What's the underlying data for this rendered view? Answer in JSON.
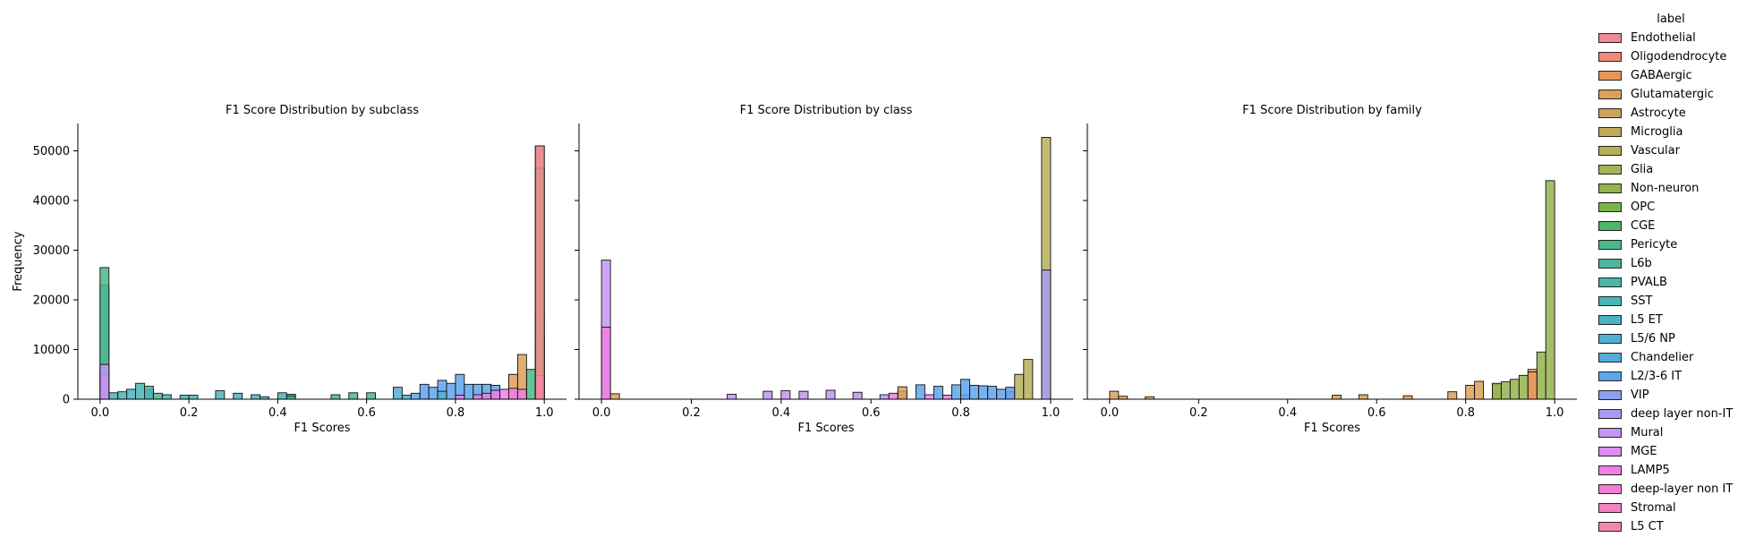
{
  "legend": {
    "title": "label",
    "items": [
      {
        "label": "Endothelial",
        "color": "#f08a95"
      },
      {
        "label": "Oligodendrocyte",
        "color": "#f0897a"
      },
      {
        "label": "GABAergic",
        "color": "#e8955a"
      },
      {
        "label": "Glutamatergic",
        "color": "#d9a159"
      },
      {
        "label": "Astrocyte",
        "color": "#cda35a"
      },
      {
        "label": "Microglia",
        "color": "#c4aa58"
      },
      {
        "label": "Vascular",
        "color": "#b5b059"
      },
      {
        "label": "Glia",
        "color": "#a5b355"
      },
      {
        "label": "Non-neuron",
        "color": "#93b34e"
      },
      {
        "label": "OPC",
        "color": "#77b54a"
      },
      {
        "label": "CGE",
        "color": "#4fb567"
      },
      {
        "label": "Pericyte",
        "color": "#4bb788"
      },
      {
        "label": "L6b",
        "color": "#4cb59c"
      },
      {
        "label": "PVALB",
        "color": "#4bb5a8"
      },
      {
        "label": "SST",
        "color": "#4bb4b4"
      },
      {
        "label": "L5 ET",
        "color": "#4db2c0"
      },
      {
        "label": "L5/6 NP",
        "color": "#4fb0cd"
      },
      {
        "label": "Chandelier",
        "color": "#52acdb"
      },
      {
        "label": "L2/3-6 IT",
        "color": "#5ea5ec"
      },
      {
        "label": "VIP",
        "color": "#8aa2ee"
      },
      {
        "label": "deep layer non-IT",
        "color": "#a89df0"
      },
      {
        "label": "Mural",
        "color": "#c097f1"
      },
      {
        "label": "MGE",
        "color": "#da8fee"
      },
      {
        "label": "LAMP5",
        "color": "#ed7fe3"
      },
      {
        "label": "deep-layer non IT",
        "color": "#f27fd2"
      },
      {
        "label": "Stromal",
        "color": "#f284be"
      },
      {
        "label": "L5 CT",
        "color": "#f287a6"
      }
    ]
  },
  "chart_data": [
    {
      "type": "bar",
      "title": "F1 Score Distribution by subclass",
      "xlabel": "F1 Scores",
      "ylabel": "Frequency",
      "xlim": [
        -0.05,
        1.05
      ],
      "ylim": [
        0,
        55500
      ],
      "xticks": [
        "0.0",
        "0.2",
        "0.4",
        "0.6",
        "0.8",
        "1.0"
      ],
      "yticks": [
        "0",
        "10000",
        "20000",
        "30000",
        "40000",
        "50000"
      ],
      "bin_width": 0.02,
      "series": [
        {
          "name": "L5 ET",
          "color": "#4db2c0",
          "values": [
            [
              0.0,
              23000
            ],
            [
              0.02,
              1300
            ],
            [
              0.06,
              2000
            ],
            [
              0.1,
              2000
            ],
            [
              0.26,
              1700
            ],
            [
              0.3,
              1200
            ],
            [
              0.98,
              17000
            ]
          ]
        },
        {
          "name": "Pericyte",
          "color": "#4bb788",
          "values": [
            [
              0.0,
              26500
            ],
            [
              0.12,
              1200
            ],
            [
              0.42,
              1000
            ],
            [
              0.52,
              900
            ],
            [
              0.56,
              1300
            ],
            [
              0.6,
              1300
            ],
            [
              0.96,
              6000
            ]
          ]
        },
        {
          "name": "SST",
          "color": "#4bb4b4",
          "values": [
            [
              0.04,
              1500
            ],
            [
              0.08,
              3200
            ],
            [
              0.1,
              2600
            ],
            [
              0.14,
              900
            ],
            [
              0.18,
              800
            ],
            [
              0.2,
              800
            ],
            [
              0.34,
              900
            ],
            [
              0.36,
              500
            ],
            [
              0.4,
              1300
            ],
            [
              0.42,
              600
            ],
            [
              0.98,
              12500
            ]
          ]
        },
        {
          "name": "L2/3-6 IT",
          "color": "#5ea5ec",
          "values": [
            [
              0.7,
              1200
            ],
            [
              0.72,
              3000
            ],
            [
              0.74,
              2400
            ],
            [
              0.76,
              3800
            ],
            [
              0.78,
              3200
            ],
            [
              0.8,
              5000
            ],
            [
              0.82,
              3000
            ],
            [
              0.84,
              3000
            ],
            [
              0.86,
              3000
            ],
            [
              0.88,
              2800
            ],
            [
              0.98,
              8000
            ]
          ]
        },
        {
          "name": "L5/6 NP",
          "color": "#4fb0cd",
          "values": [
            [
              0.66,
              2400
            ],
            [
              0.68,
              800
            ],
            [
              0.76,
              1600
            ]
          ]
        },
        {
          "name": "Glutamatergic",
          "color": "#d9a159",
          "values": [
            [
              0.92,
              5000
            ],
            [
              0.94,
              9000
            ],
            [
              0.98,
              51000
            ]
          ]
        },
        {
          "name": "OPC",
          "color": "#77b54a",
          "values": [
            [
              0.98,
              46500
            ]
          ]
        },
        {
          "name": "LAMP5",
          "color": "#ed7fe3",
          "values": [
            [
              0.0,
              5000
            ],
            [
              0.8,
              800
            ],
            [
              0.84,
              900
            ],
            [
              0.86,
              1200
            ],
            [
              0.88,
              1800
            ],
            [
              0.9,
              2000
            ],
            [
              0.92,
              2200
            ],
            [
              0.94,
              2000
            ],
            [
              0.98,
              4800
            ]
          ]
        },
        {
          "name": "Mural",
          "color": "#c097f1",
          "values": [
            [
              0.0,
              7000
            ]
          ]
        },
        {
          "name": "Endothelial",
          "color": "#f08a95",
          "values": [
            [
              0.98,
              51000
            ]
          ]
        }
      ]
    },
    {
      "type": "bar",
      "title": "F1 Score Distribution by class",
      "xlabel": "F1 Scores",
      "ylabel": "",
      "xlim": [
        -0.05,
        1.05
      ],
      "ylim": [
        0,
        55500
      ],
      "xticks": [
        "0.0",
        "0.2",
        "0.4",
        "0.6",
        "0.8",
        "1.0"
      ],
      "yticks": [],
      "bin_width": 0.02,
      "series": [
        {
          "name": "Mural",
          "color": "#c097f1",
          "values": [
            [
              0.0,
              28000
            ],
            [
              0.28,
              1000
            ],
            [
              0.36,
              1600
            ],
            [
              0.4,
              1700
            ],
            [
              0.44,
              1600
            ],
            [
              0.5,
              1800
            ],
            [
              0.56,
              1400
            ],
            [
              0.62,
              900
            ]
          ]
        },
        {
          "name": "LAMP5",
          "color": "#ed7fe3",
          "values": [
            [
              0.0,
              14500
            ],
            [
              0.64,
              1200
            ],
            [
              0.66,
              1600
            ],
            [
              0.72,
              900
            ],
            [
              0.76,
              800
            ],
            [
              0.8,
              900
            ],
            [
              0.9,
              1500
            ]
          ]
        },
        {
          "name": "L2/3-6 IT",
          "color": "#5ea5ec",
          "values": [
            [
              0.7,
              2900
            ],
            [
              0.74,
              2600
            ],
            [
              0.78,
              2900
            ],
            [
              0.8,
              4000
            ],
            [
              0.82,
              2800
            ],
            [
              0.84,
              2700
            ],
            [
              0.86,
              2600
            ],
            [
              0.88,
              2000
            ],
            [
              0.9,
              2400
            ]
          ]
        },
        {
          "name": "Glutamatergic",
          "color": "#d9a159",
          "values": [
            [
              0.02,
              1100
            ],
            [
              0.66,
              2500
            ]
          ]
        },
        {
          "name": "Vascular",
          "color": "#b5b059",
          "values": [
            [
              0.92,
              5000
            ],
            [
              0.94,
              8000
            ],
            [
              0.98,
              52700
            ]
          ]
        },
        {
          "name": "deep layer non-IT",
          "color": "#a89df0",
          "values": [
            [
              0.98,
              26000
            ]
          ]
        }
      ]
    },
    {
      "type": "bar",
      "title": "F1 Score Distribution by family",
      "xlabel": "F1 Scores",
      "ylabel": "",
      "xlim": [
        -0.05,
        1.05
      ],
      "ylim": [
        0,
        55500
      ],
      "xticks": [
        "0.0",
        "0.2",
        "0.4",
        "0.6",
        "0.8",
        "1.0"
      ],
      "yticks": [],
      "bin_width": 0.02,
      "series": [
        {
          "name": "Glutamatergic",
          "color": "#d9a159",
          "values": [
            [
              0.0,
              1600
            ],
            [
              0.02,
              600
            ],
            [
              0.08,
              500
            ],
            [
              0.5,
              800
            ],
            [
              0.56,
              900
            ],
            [
              0.66,
              700
            ],
            [
              0.76,
              1500
            ],
            [
              0.8,
              2800
            ],
            [
              0.82,
              3600
            ],
            [
              0.86,
              3000
            ],
            [
              0.94,
              6000
            ]
          ]
        },
        {
          "name": "Non-neuron",
          "color": "#93b34e",
          "values": [
            [
              0.86,
              3200
            ],
            [
              0.88,
              3500
            ],
            [
              0.9,
              4000
            ],
            [
              0.92,
              4800
            ],
            [
              0.96,
              9500
            ],
            [
              0.98,
              44000
            ]
          ]
        },
        {
          "name": "GABAergic",
          "color": "#e8955a",
          "values": [
            [
              0.94,
              5500
            ]
          ]
        }
      ]
    }
  ]
}
